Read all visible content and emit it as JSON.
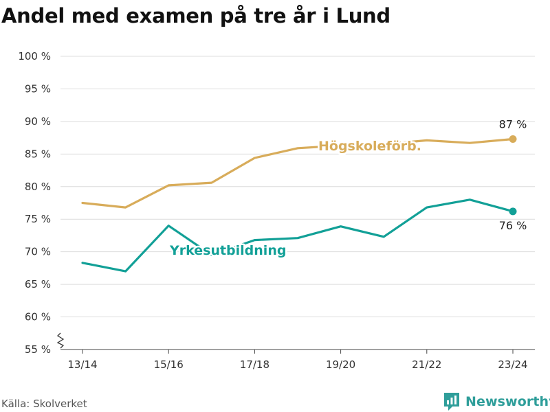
{
  "title": "Andel med examen på tre år i Lund",
  "source": "Källa: Skolverket",
  "brand": {
    "name": "Newsworthy",
    "icon": "newsworthy-logo-icon"
  },
  "chart_data": {
    "type": "line",
    "title": "Andel med examen på tre år i Lund",
    "x": [
      "13/14",
      "14/15",
      "15/16",
      "16/17",
      "17/18",
      "18/19",
      "19/20",
      "20/21",
      "21/22",
      "22/23",
      "23/24"
    ],
    "x_tick_labels": [
      "13/14",
      "15/16",
      "17/18",
      "19/20",
      "21/22",
      "23/24"
    ],
    "y_tick_labels": [
      "55 %",
      "60 %",
      "65 %",
      "70 %",
      "75 %",
      "80 %",
      "85 %",
      "90 %",
      "95 %",
      "100 %"
    ],
    "ylim": [
      55,
      100
    ],
    "y_axis_break": true,
    "grid": true,
    "series": [
      {
        "name": "Högskoleförb.",
        "color": "#d8ac5a",
        "values": [
          77.5,
          76.8,
          80.2,
          80.6,
          84.4,
          85.9,
          86.3,
          86.5,
          87.1,
          86.7,
          87.3
        ],
        "end_label": "87 %"
      },
      {
        "name": "Yrkesutbildning",
        "color": "#12a097",
        "values": [
          68.3,
          67.0,
          74.0,
          69.5,
          71.8,
          72.1,
          73.9,
          72.3,
          76.8,
          78.0,
          76.2
        ],
        "end_label": "76 %"
      }
    ]
  }
}
